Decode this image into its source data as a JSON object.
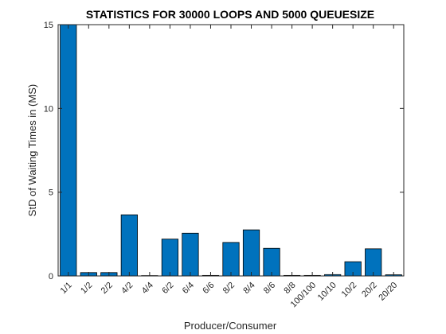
{
  "chart_data": {
    "type": "bar",
    "title": "STATISTICS FOR 30000 LOOPS AND 5000 QUEUESIZE",
    "xlabel": "Producer/Consumer",
    "ylabel": "StD of Waiting Times in (MS)",
    "categories": [
      "1/1",
      "1/2",
      "2/2",
      "4/2",
      "4/4",
      "6/2",
      "6/4",
      "6/6",
      "8/2",
      "8/4",
      "8/6",
      "8/8",
      "100/100",
      "10/10",
      "10/2",
      "20/2",
      "20/20"
    ],
    "values": [
      15,
      0.2,
      0.2,
      3.65,
      0.02,
      2.2,
      2.55,
      0.03,
      2.0,
      2.75,
      1.65,
      0.03,
      0.03,
      0.08,
      0.85,
      1.62,
      0.07
    ],
    "ylim": [
      0,
      15
    ],
    "yticks": [
      0,
      5,
      10,
      15
    ],
    "grid": false,
    "colors": {
      "bar_fill": "#0072BD",
      "bar_edge": "#000000",
      "axis": "#262626"
    }
  }
}
